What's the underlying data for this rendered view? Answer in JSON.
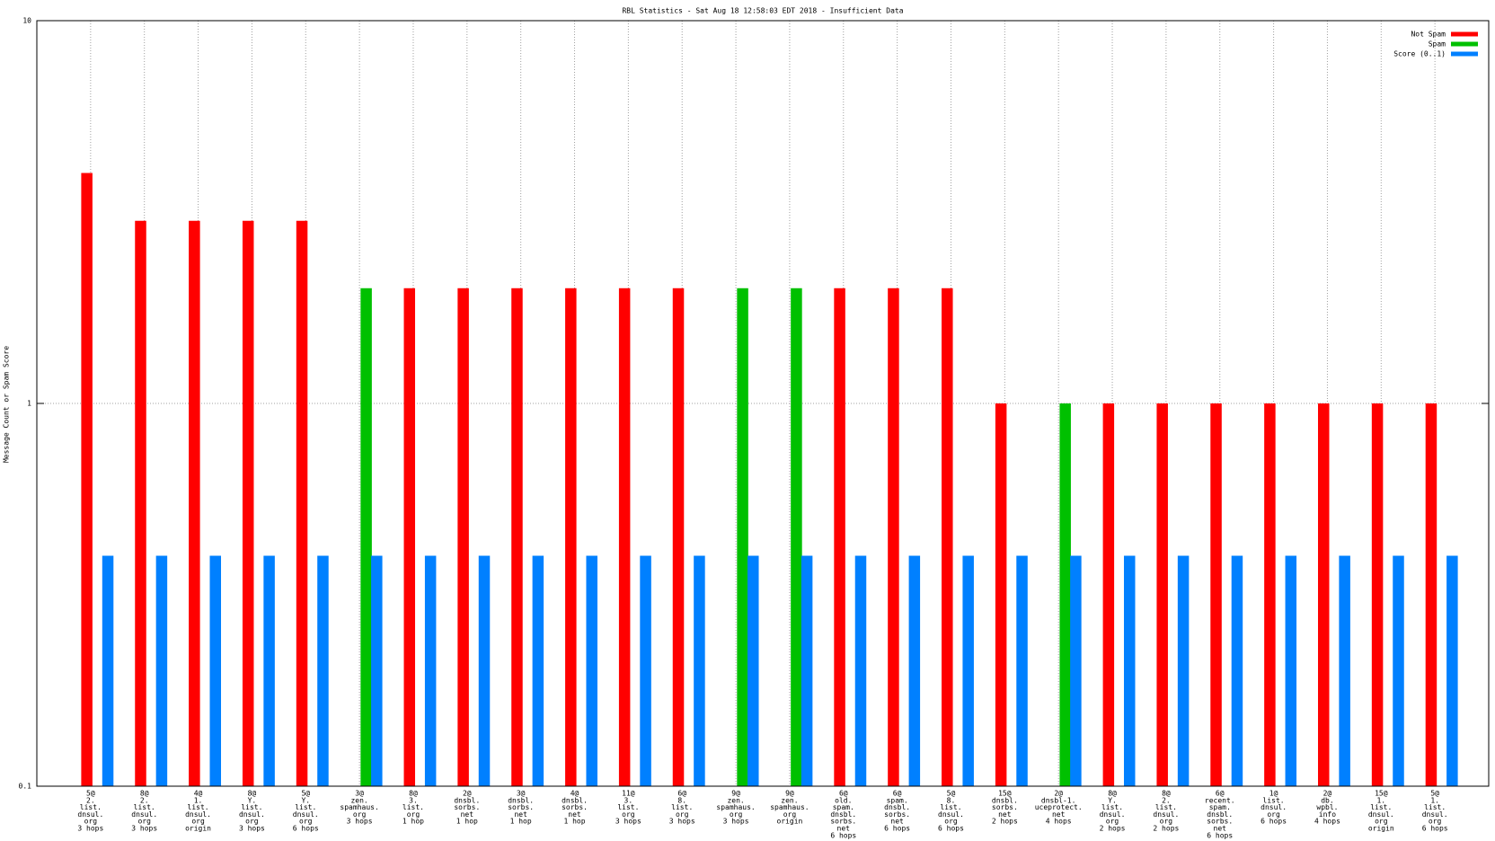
{
  "chart_data": {
    "type": "bar",
    "log_y": true,
    "grid": true,
    "legend": "top-right",
    "title": "RBL Statistics - Sat Aug 18 12:58:03 EDT 2018 - Insufficient Data",
    "ylabel": "Message Count or Spam Score",
    "ylim": [
      0.1,
      10
    ],
    "yticks": [
      0.1,
      1,
      10
    ],
    "categories": [
      [
        "5@",
        "2.",
        "list.",
        "dnsul.",
        "org",
        "3 hops"
      ],
      [
        "8@",
        "2.",
        "list.",
        "dnsul.",
        "org",
        "3 hops"
      ],
      [
        "4@",
        "1.",
        "list.",
        "dnsul.",
        "org",
        "origin"
      ],
      [
        "8@",
        "Y.",
        "list.",
        "dnsul.",
        "org",
        "3 hops"
      ],
      [
        "5@",
        "Y.",
        "list.",
        "dnsul.",
        "org",
        "6 hops"
      ],
      [
        "3@",
        "zen.",
        "spamhaus.",
        "org",
        "3 hops"
      ],
      [
        "8@",
        "3.",
        "list.",
        "org",
        "1 hop"
      ],
      [
        "2@",
        "dnsbl.",
        "sorbs.",
        "net",
        "1 hop"
      ],
      [
        "3@",
        "dnsbl.",
        "sorbs.",
        "net",
        "1 hop"
      ],
      [
        "4@",
        "dnsbl.",
        "sorbs.",
        "net",
        "1 hop"
      ],
      [
        "11@",
        "3.",
        "list.",
        "org",
        "3 hops"
      ],
      [
        "6@",
        "8.",
        "list.",
        "org",
        "3 hops"
      ],
      [
        "9@",
        "zen.",
        "spamhaus.",
        "org",
        "3 hops"
      ],
      [
        "9@",
        "zen.",
        "spamhaus.",
        "org",
        "origin"
      ],
      [
        "6@",
        "old.",
        "spam.",
        "dnsbl.",
        "sorbs.",
        "net",
        "6 hops"
      ],
      [
        "6@",
        "spam.",
        "dnsbl.",
        "sorbs.",
        "net",
        "6 hops"
      ],
      [
        "5@",
        "8.",
        "list.",
        "dnsul.",
        "org",
        "6 hops"
      ],
      [
        "15@",
        "dnsbl.",
        "sorbs.",
        "net",
        "2 hops"
      ],
      [
        "2@",
        "dnsbl-1.",
        "uceprotect.",
        "net",
        "4 hops"
      ],
      [
        "8@",
        "Y.",
        "list.",
        "dnsul.",
        "org",
        "2 hops"
      ],
      [
        "8@",
        "2.",
        "list.",
        "dnsul.",
        "org",
        "2 hops"
      ],
      [
        "6@",
        "recent.",
        "spam.",
        "dnsbl.",
        "sorbs.",
        "net",
        "6 hops"
      ],
      [
        "1@",
        "list.",
        "dnsul.",
        "org",
        "6 hops"
      ],
      [
        "2@",
        "db.",
        "wpbl.",
        "info",
        "4 hops"
      ],
      [
        "15@",
        "1.",
        "list.",
        "dnsul.",
        "org",
        "origin"
      ],
      [
        "5@",
        "1.",
        "list.",
        "dnsul.",
        "org",
        "6 hops"
      ]
    ],
    "series": [
      {
        "name": "Not Spam",
        "color": "#ff0000",
        "values": [
          4,
          3,
          3,
          3,
          3,
          null,
          2,
          2,
          2,
          2,
          2,
          2,
          null,
          null,
          2,
          2,
          2,
          1,
          null,
          1,
          1,
          1,
          1,
          1,
          1,
          1
        ]
      },
      {
        "name": "Spam",
        "color": "#00c000",
        "values": [
          null,
          null,
          null,
          null,
          null,
          2,
          null,
          null,
          null,
          null,
          null,
          null,
          2,
          2,
          null,
          null,
          null,
          null,
          1,
          null,
          null,
          null,
          null,
          null,
          null,
          null
        ]
      },
      {
        "name": "Score (0..1)",
        "color": "#0080ff",
        "values": [
          0.4,
          0.4,
          0.4,
          0.4,
          0.4,
          0.4,
          0.4,
          0.4,
          0.4,
          0.4,
          0.4,
          0.4,
          0.4,
          0.4,
          0.4,
          0.4,
          0.4,
          0.4,
          0.4,
          0.4,
          0.4,
          0.4,
          0.4,
          0.4,
          0.4,
          0.4
        ]
      }
    ]
  }
}
